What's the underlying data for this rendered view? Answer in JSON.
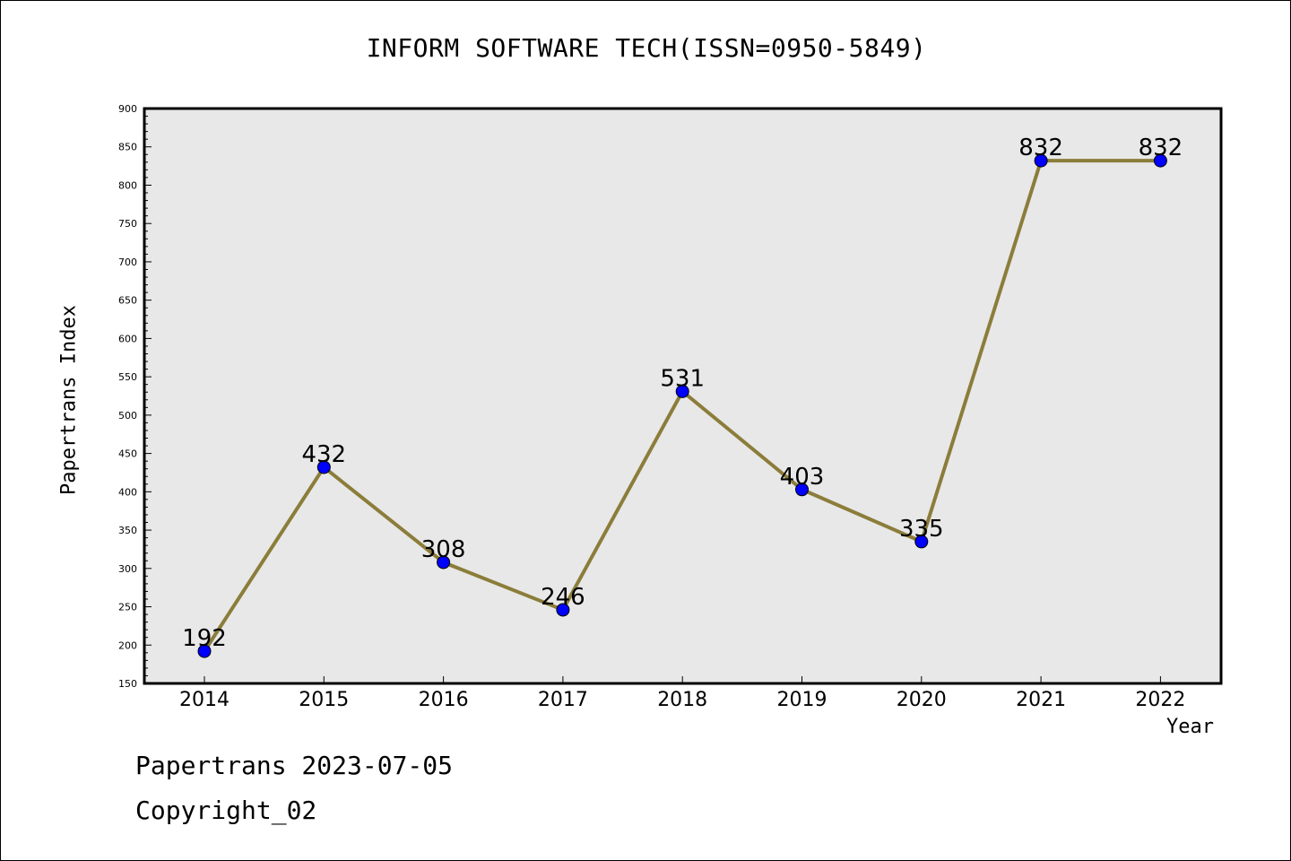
{
  "chart_data": {
    "type": "line",
    "title": "INFORM SOFTWARE TECH(ISSN=0950-5849)",
    "xlabel": "Year",
    "ylabel": "Papertrans Index",
    "categories": [
      "2014",
      "2015",
      "2016",
      "2017",
      "2018",
      "2019",
      "2020",
      "2021",
      "2022"
    ],
    "series": [
      {
        "values": [
          192,
          432,
          308,
          246,
          531,
          403,
          335,
          832,
          832
        ]
      }
    ],
    "data_labels": [
      "192",
      "432",
      "308",
      "246",
      "531",
      "403",
      "335",
      "832",
      "832"
    ],
    "ylim": [
      150,
      900
    ],
    "yticks": [
      "150",
      "200",
      "250",
      "300",
      "350",
      "400",
      "450",
      "500",
      "550",
      "600",
      "650",
      "700",
      "750",
      "800",
      "850",
      "900"
    ],
    "grid": false,
    "colors": {
      "line": "#8b7d3a",
      "marker": "#0000ff",
      "plot_background": "#e8e8e8"
    }
  },
  "footer": {
    "date_line": "Papertrans 2023-07-05",
    "copyright_line": "Copyright_02"
  }
}
